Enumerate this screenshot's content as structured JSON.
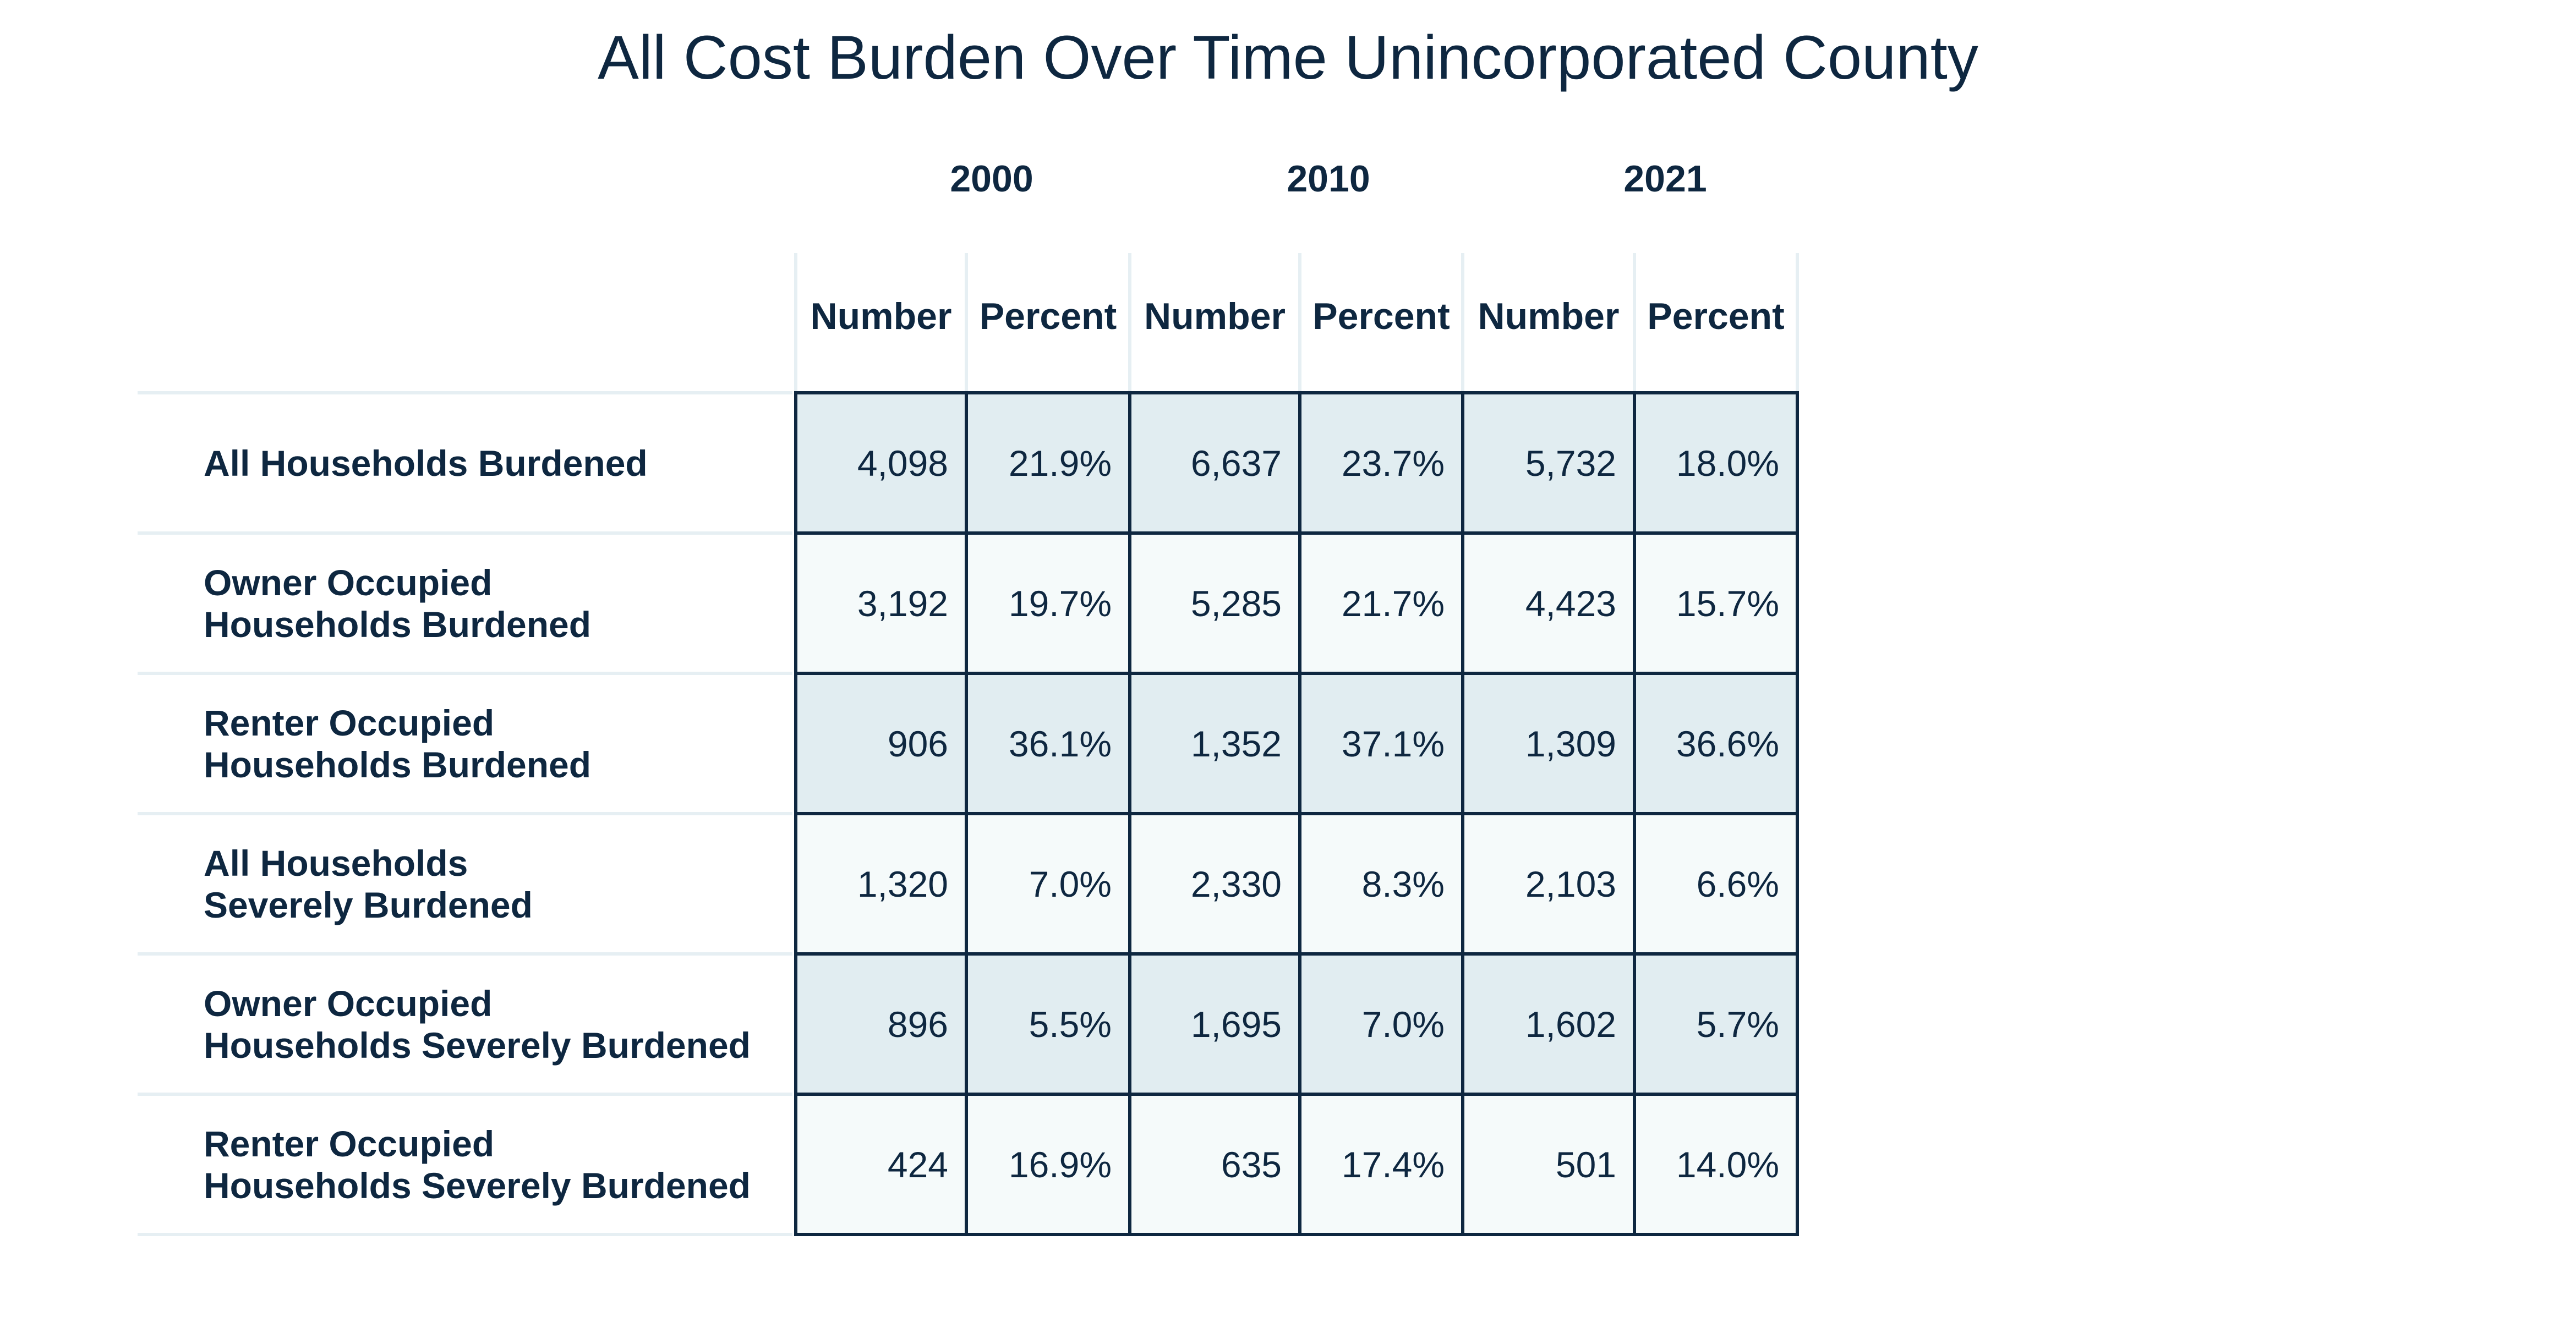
{
  "chart_data": {
    "type": "table",
    "title": "All Cost Burden Over Time Unincorporated County",
    "years": [
      "2000",
      "2010",
      "2021"
    ],
    "subheaders": [
      "Number",
      "Percent",
      "Number",
      "Percent",
      "Number",
      "Percent"
    ],
    "rows": [
      {
        "label_line1": "All Households Burdened",
        "label_line2": "",
        "values": [
          "4,098",
          "21.9%",
          "6,637",
          "23.7%",
          "5,732",
          "18.0%"
        ]
      },
      {
        "label_line1": "Owner Occupied",
        "label_line2": "Households Burdened",
        "values": [
          "3,192",
          "19.7%",
          "5,285",
          "21.7%",
          "4,423",
          "15.7%"
        ]
      },
      {
        "label_line1": "Renter Occupied",
        "label_line2": "Households Burdened",
        "values": [
          "906",
          "36.1%",
          "1,352",
          "37.1%",
          "1,309",
          "36.6%"
        ]
      },
      {
        "label_line1": "All Households",
        "label_line2": "Severely Burdened",
        "values": [
          "1,320",
          "7.0%",
          "2,330",
          "8.3%",
          "2,103",
          "6.6%"
        ]
      },
      {
        "label_line1": "Owner Occupied",
        "label_line2": "Households Severely Burdened",
        "values": [
          "896",
          "5.5%",
          "1,695",
          "7.0%",
          "1,602",
          "5.7%"
        ]
      },
      {
        "label_line1": "Renter Occupied",
        "label_line2": "Households Severely Burdened",
        "values": [
          "424",
          "16.9%",
          "635",
          "17.4%",
          "501",
          "14.0%"
        ]
      }
    ],
    "colors": {
      "text": "#0e2740",
      "shaded_row": "#e1edf1",
      "light_row": "#f5fafa",
      "border": "#0e2740",
      "divider": "#e6eff3"
    }
  }
}
